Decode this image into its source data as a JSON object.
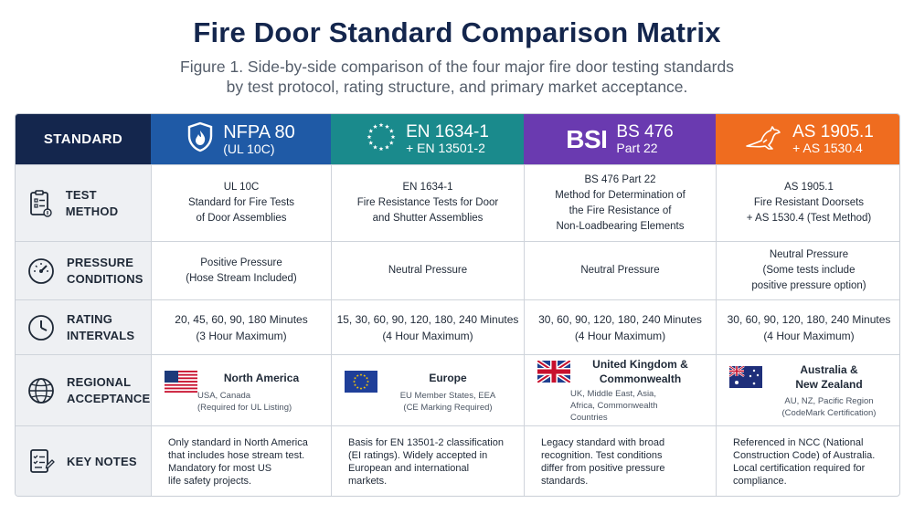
{
  "title": "Fire Door Standard Comparison Matrix",
  "subtitle": {
    "line1": "Figure 1. Side-by-side comparison of the four major fire door testing standards",
    "line2": "by test protocol, rating structure, and primary market acceptance."
  },
  "header": {
    "standard_label": "STANDARD",
    "columns": [
      {
        "main": "NFPA 80",
        "sub": "(UL 10C)",
        "icon": "flame-shield-icon",
        "color": "#1f5aa6"
      },
      {
        "main": "EN 1634-1",
        "sub": "+ EN 13501-2",
        "icon": "eu-stars-icon",
        "color": "#1a8a8c"
      },
      {
        "main": "BS 476",
        "sub": "Part 22",
        "logo": "BSI",
        "icon": "bsi-logo",
        "color": "#6a3ab0"
      },
      {
        "main": "AS 1905.1",
        "sub": "+ AS 1530.4",
        "icon": "kangaroo-icon",
        "color": "#ef6c1f"
      }
    ]
  },
  "rows": {
    "test_method": {
      "label1": "TEST METHOD",
      "icon": "clipboard-icon",
      "cells": [
        [
          "UL 10C",
          "Standard for Fire Tests",
          "of Door Assemblies"
        ],
        [
          "EN 1634-1",
          "Fire Resistance Tests for Door",
          "and Shutter Assemblies"
        ],
        [
          "BS 476 Part 22",
          "Method for Determination of",
          "the Fire Resistance of",
          "Non-Loadbearing Elements"
        ],
        [
          "AS 1905.1",
          "Fire Resistant Doorsets",
          "+ AS 1530.4 (Test Method)"
        ]
      ]
    },
    "pressure": {
      "label1": "PRESSURE",
      "label2": "CONDITIONS",
      "icon": "gauge-icon",
      "cells": [
        [
          "Positive Pressure",
          "(Hose Stream Included)"
        ],
        [
          "Neutral Pressure"
        ],
        [
          "Neutral Pressure"
        ],
        [
          "Neutral Pressure",
          "(Some tests include",
          "positive pressure option)"
        ]
      ]
    },
    "rating": {
      "label1": "RATING",
      "label2": "INTERVALS",
      "icon": "clock-icon",
      "cells": [
        [
          "20, 45, 60, 90, 180 Minutes",
          "(3 Hour Maximum)"
        ],
        [
          "15, 30, 60, 90, 120, 180, 240 Minutes",
          "(4 Hour Maximum)"
        ],
        [
          "30, 60, 90, 120, 180, 240 Minutes",
          "(4 Hour Maximum)"
        ],
        [
          "30, 60, 90, 120, 180, 240 Minutes",
          "(4 Hour Maximum)"
        ]
      ]
    },
    "regional": {
      "label1": "REGIONAL",
      "label2": "ACCEPTANCE",
      "icon": "globe-icon",
      "cells": [
        {
          "name": [
            "North America"
          ],
          "sub": [
            "USA, Canada",
            "(Required for UL Listing)"
          ],
          "flag": "us-flag-icon"
        },
        {
          "name": [
            "Europe"
          ],
          "sub": [
            "EU Member States, EEA",
            "(CE Marking Required)"
          ],
          "flag": "eu-flag-icon"
        },
        {
          "name": [
            "United Kingdom &",
            "Commonwealth"
          ],
          "sub": [
            "UK, Middle East, Asia,",
            "Africa, Commonwealth",
            "Countries"
          ],
          "flag": "uk-flag-icon"
        },
        {
          "name": [
            "Australia &",
            "New Zealand"
          ],
          "sub": [
            "AU, NZ, Pacific Region",
            "(CodeMark Certification)"
          ],
          "flag": "au-flag-icon"
        }
      ]
    },
    "notes": {
      "label1": "KEY NOTES",
      "icon": "notes-checklist-icon",
      "cells": [
        [
          "Only standard in North America",
          "that includes hose stream test.",
          "Mandatory for most US",
          "life safety projects."
        ],
        [
          "Basis for EN 13501-2 classification",
          "(EI ratings). Widely accepted in",
          "European and international",
          "markets."
        ],
        [
          "Legacy standard with broad",
          "recognition. Test conditions",
          "differ from positive pressure",
          "standards."
        ],
        [
          "Referenced in NCC (National",
          "Construction Code) of Australia.",
          "Local certification required for",
          "compliance."
        ]
      ]
    }
  }
}
